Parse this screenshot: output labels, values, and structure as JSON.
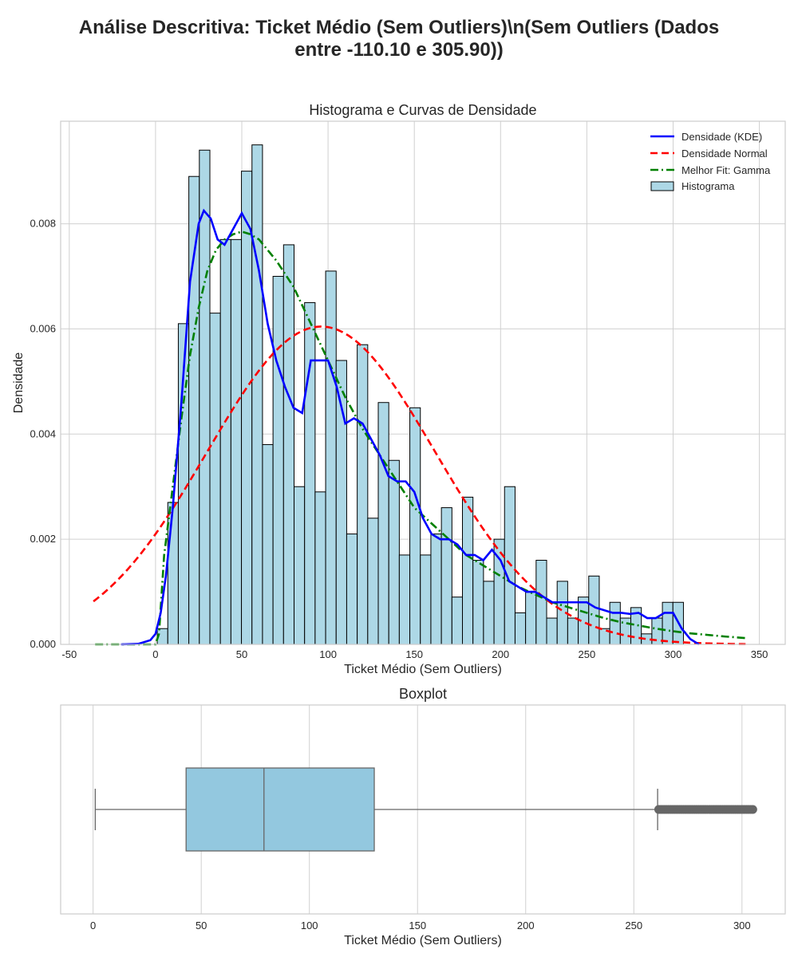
{
  "suptitle_line1": "Análise Descritiva: Ticket Médio (Sem Outliers)\\n(Sem Outliers (Dados",
  "suptitle_line2": "entre -110.10 e 305.90))",
  "colors": {
    "kde": "#0000ff",
    "normal": "#ff0000",
    "gamma": "#008000",
    "hist_fill": "#add8e6",
    "box_fill": "#93c8df",
    "whisker": "#666666",
    "grid": "#d0d0d0"
  },
  "chart_data": [
    {
      "type": "histogram",
      "title": "Histograma e Curvas de Densidade",
      "xlabel": "Ticket Médio (Sem Outliers)",
      "ylabel": "Densidade",
      "xlim": [
        -55,
        365
      ],
      "ylim": [
        0,
        0.00995
      ],
      "xticks": [
        -50,
        0,
        50,
        100,
        150,
        200,
        250,
        300,
        350
      ],
      "yticks": [
        0.0,
        0.002,
        0.004,
        0.006,
        0.008
      ],
      "ytick_labels": [
        "0.000",
        "0.002",
        "0.004",
        "0.006",
        "0.008"
      ],
      "grid": true,
      "legend_position": "upper right",
      "legend": [
        "Densidade (KDE)",
        "Densidade Normal",
        "Melhor Fit: Gamma",
        "Histograma"
      ],
      "bins": {
        "start": 1.0,
        "width": 6.1,
        "values": [
          0.0003,
          0.0027,
          0.0061,
          0.0089,
          0.0094,
          0.0063,
          0.0077,
          0.0077,
          0.009,
          0.0095,
          0.0038,
          0.007,
          0.0076,
          0.003,
          0.0065,
          0.0029,
          0.0071,
          0.0054,
          0.0021,
          0.0057,
          0.0024,
          0.0046,
          0.0035,
          0.0017,
          0.0045,
          0.0017,
          0.0021,
          0.0026,
          0.0009,
          0.0028,
          0.0016,
          0.0012,
          0.002,
          0.003,
          0.0006,
          0.001,
          0.0016,
          0.0005,
          0.0012,
          0.0005,
          0.0009,
          0.0013,
          0.0003,
          0.0008,
          0.0005,
          0.0007,
          0.0002,
          0.0005,
          0.0008,
          0.0008
        ]
      },
      "kde": {
        "x": [
          -20,
          -10,
          -3,
          0,
          3,
          6,
          10,
          15,
          20,
          25,
          28,
          32,
          36,
          40,
          45,
          50,
          55,
          60,
          65,
          70,
          75,
          80,
          85,
          90,
          95,
          100,
          105,
          110,
          115,
          120,
          125,
          130,
          135,
          140,
          145,
          150,
          155,
          160,
          165,
          170,
          175,
          180,
          185,
          190,
          195,
          200,
          205,
          210,
          215,
          220,
          225,
          230,
          235,
          240,
          245,
          250,
          255,
          260,
          265,
          270,
          275,
          280,
          285,
          290,
          295,
          300,
          305,
          310,
          315
        ],
        "y": [
          0.0,
          1e-05,
          8e-05,
          0.0002,
          0.0006,
          0.0013,
          0.0026,
          0.0046,
          0.0069,
          0.008,
          0.00825,
          0.0081,
          0.0077,
          0.0076,
          0.0079,
          0.0082,
          0.0079,
          0.0071,
          0.0061,
          0.0054,
          0.0049,
          0.0045,
          0.0044,
          0.0054,
          0.0054,
          0.0054,
          0.0049,
          0.0042,
          0.0043,
          0.0042,
          0.0039,
          0.0036,
          0.0032,
          0.0031,
          0.0031,
          0.0029,
          0.0024,
          0.0021,
          0.002,
          0.002,
          0.0019,
          0.0017,
          0.0017,
          0.0016,
          0.0018,
          0.0016,
          0.0012,
          0.0011,
          0.001,
          0.001,
          0.0009,
          0.0008,
          0.0008,
          0.0008,
          0.0008,
          0.0008,
          0.0007,
          0.00065,
          0.0006,
          0.0006,
          0.00058,
          0.0006,
          0.0005,
          0.0005,
          0.0006,
          0.0006,
          0.0003,
          0.0001,
          0.0
        ]
      },
      "normal": {
        "mean": 96,
        "sd": 66,
        "x_range": [
          -36,
          342
        ]
      },
      "gamma": {
        "x": [
          -35,
          -20,
          -10,
          0,
          2,
          5,
          10,
          15,
          20,
          25,
          30,
          35,
          40,
          45,
          50,
          55,
          60,
          65,
          70,
          80,
          90,
          100,
          110,
          120,
          130,
          140,
          150,
          160,
          170,
          180,
          190,
          200,
          210,
          220,
          230,
          240,
          250,
          260,
          270,
          280,
          290,
          300,
          310,
          320,
          330,
          342
        ],
        "y": [
          0,
          0,
          0,
          0,
          0.0002,
          0.0017,
          0.003,
          0.0043,
          0.0055,
          0.0064,
          0.0071,
          0.0075,
          0.0077,
          0.0078,
          0.00785,
          0.0078,
          0.0077,
          0.0075,
          0.0073,
          0.0068,
          0.0061,
          0.0054,
          0.0047,
          0.0041,
          0.0036,
          0.0031,
          0.0026,
          0.0023,
          0.002,
          0.0017,
          0.0015,
          0.0013,
          0.0011,
          0.00095,
          0.0008,
          0.0007,
          0.0006,
          0.0005,
          0.00042,
          0.00036,
          0.0003,
          0.00025,
          0.00021,
          0.00018,
          0.00015,
          0.00012
        ]
      }
    },
    {
      "type": "boxplot",
      "title": "Boxplot",
      "xlabel": "Ticket Médio (Sem Outliers)",
      "xlim": [
        -15,
        320
      ],
      "xticks": [
        0,
        50,
        100,
        150,
        200,
        250,
        300
      ],
      "grid": true,
      "whisker_low": 1,
      "q1": 43,
      "median": 79,
      "q3": 130,
      "whisker_high": 261,
      "outliers": [
        261.5,
        262,
        263,
        264,
        265,
        266,
        267,
        268,
        269,
        270,
        271,
        272,
        273,
        274,
        275,
        276,
        277,
        278,
        279,
        280,
        281,
        282,
        283,
        284,
        285,
        286,
        287,
        288,
        289,
        290,
        291,
        292,
        293,
        294,
        295,
        296,
        297,
        298,
        299,
        300,
        301,
        302,
        303,
        304,
        305
      ]
    }
  ]
}
